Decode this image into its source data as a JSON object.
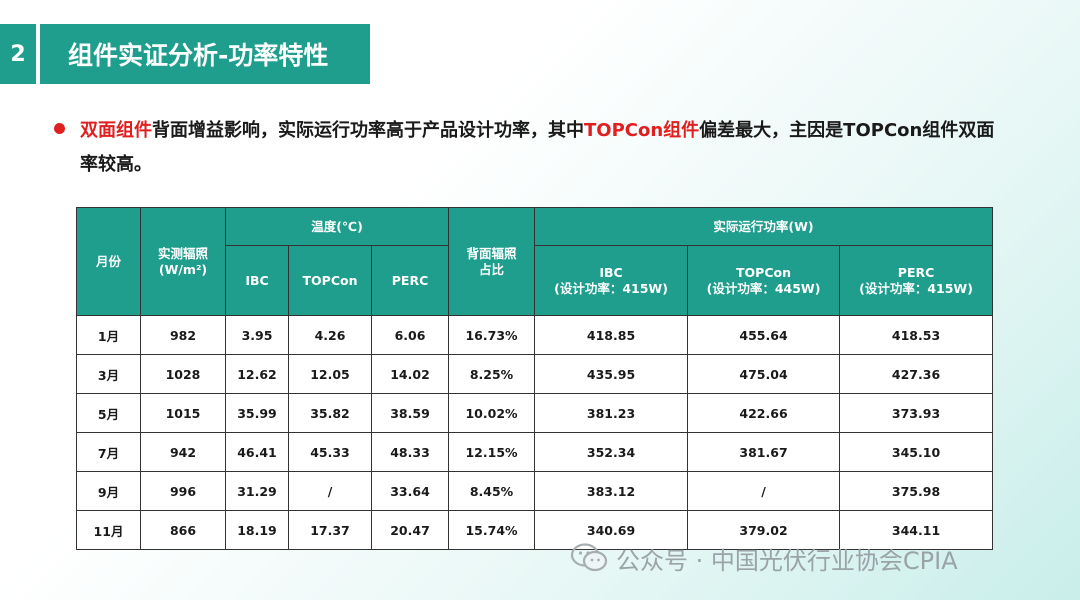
{
  "header": {
    "section_number": "2",
    "title": "组件实证分析-功率特性"
  },
  "bullet": {
    "part1": "双面组件",
    "part2": "背面增益影响，实际运行功率高于产品设计功率，其中",
    "part3": "TOPCon组件",
    "part4": "偏差最大，主因是TOPCon组件双面率较高。"
  },
  "table": {
    "headers": {
      "month": "月份",
      "irradiance": "实测辐照",
      "irradiance_unit": "(W/m²)",
      "temperature": "温度(℃)",
      "rear_ratio": "背面辐照占比",
      "power": "实际运行功率(W)",
      "temp_cols": [
        "IBC",
        "TOPCon",
        "PERC"
      ],
      "power_cols": [
        {
          "name": "IBC",
          "design": "(设计功率：415W)"
        },
        {
          "name": "TOPCon",
          "design": "(设计功率：445W)"
        },
        {
          "name": "PERC",
          "design": "(设计功率：415W)"
        }
      ]
    },
    "rows": [
      [
        "1月",
        "982",
        "3.95",
        "4.26",
        "6.06",
        "16.73%",
        "418.85",
        "455.64",
        "418.53"
      ],
      [
        "3月",
        "1028",
        "12.62",
        "12.05",
        "14.02",
        "8.25%",
        "435.95",
        "475.04",
        "427.36"
      ],
      [
        "5月",
        "1015",
        "35.99",
        "35.82",
        "38.59",
        "10.02%",
        "381.23",
        "422.66",
        "373.93"
      ],
      [
        "7月",
        "942",
        "46.41",
        "45.33",
        "48.33",
        "12.15%",
        "352.34",
        "381.67",
        "345.10"
      ],
      [
        "9月",
        "996",
        "31.29",
        "/",
        "33.64",
        "8.45%",
        "383.12",
        "/",
        "375.98"
      ],
      [
        "11月",
        "866",
        "18.19",
        "17.37",
        "20.47",
        "15.74%",
        "340.69",
        "379.02",
        "344.11"
      ]
    ]
  },
  "watermark": {
    "text": "公众号 · 中国光伏行业协会CPIA",
    "icon": "wechat-icon"
  }
}
